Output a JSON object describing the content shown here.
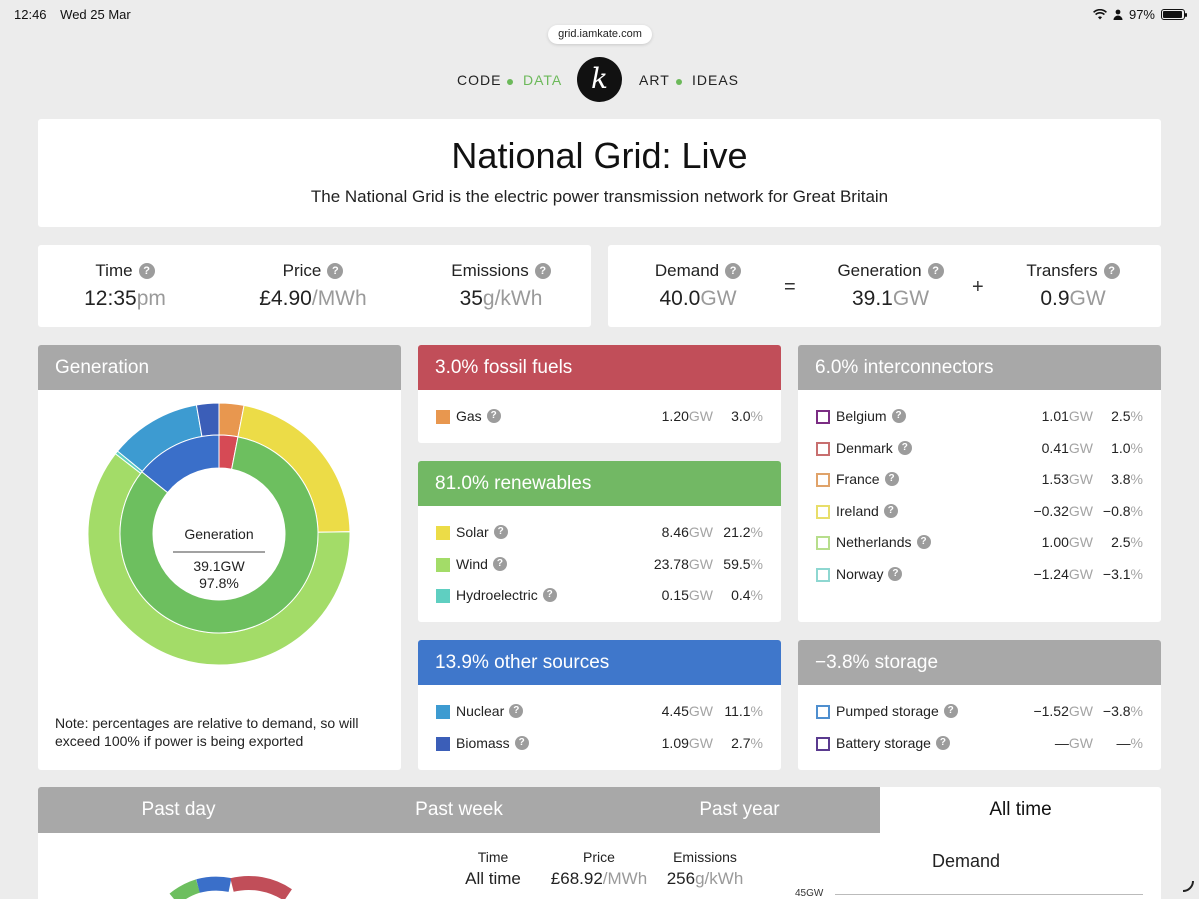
{
  "status": {
    "time": "12:46",
    "date": "Wed 25 Mar",
    "battery": "97%"
  },
  "browser": {
    "url": "grid.iamkate.com"
  },
  "nav": {
    "code": "CODE",
    "data": "DATA",
    "logo": "k",
    "art": "ART",
    "ideas": "IDEAS"
  },
  "hero": {
    "title": "National Grid: Live",
    "subtitle": "The National Grid is the electric power transmission network for Great Britain"
  },
  "stats": {
    "time": {
      "label": "Time",
      "value": "12:35",
      "unit": "pm"
    },
    "price": {
      "label": "Price",
      "value": "£4.90",
      "unit": "/MWh"
    },
    "emissions": {
      "label": "Emissions",
      "value": "35",
      "unit": "g/kWh"
    },
    "demand": {
      "label": "Demand",
      "value": "40.0",
      "unit": "GW"
    },
    "generation": {
      "label": "Generation",
      "value": "39.1",
      "unit": "GW"
    },
    "transfers": {
      "label": "Transfers",
      "value": "0.9",
      "unit": "GW"
    },
    "eq": "=",
    "plus": "+"
  },
  "generation_panel": {
    "title": "Generation",
    "center_label": "Generation",
    "center_gw": "39.1GW",
    "center_pct": "97.8%",
    "note": "Note: percentages are relative to demand, so will exceed 100% if power is being exported",
    "outer_segments": [
      {
        "name": "Gas",
        "pct": 3.0,
        "color": "#e8974f"
      },
      {
        "name": "Solar",
        "pct": 21.2,
        "color": "#ecdc47"
      },
      {
        "name": "Wind",
        "pct": 59.5,
        "color": "#a3dc68"
      },
      {
        "name": "Hydroelectric",
        "pct": 0.4,
        "color": "#5fcfc1"
      },
      {
        "name": "Nuclear",
        "pct": 11.1,
        "color": "#3d9bd1"
      },
      {
        "name": "Biomass",
        "pct": 2.7,
        "color": "#3b5eb8"
      }
    ],
    "inner_segments": [
      {
        "name": "fossil fuels",
        "pct": 3.0,
        "color": "#d64a55"
      },
      {
        "name": "renewables",
        "pct": 81.0,
        "color": "#6dbf5f"
      },
      {
        "name": "other sources",
        "pct": 13.9,
        "color": "#3a6fc9"
      }
    ]
  },
  "fossil": {
    "title": "3.0% fossil fuels",
    "rows": [
      {
        "name": "Gas",
        "gw": "1.20",
        "pct": "3.0",
        "color": "#e8974f"
      }
    ]
  },
  "renewables": {
    "title": "81.0% renewables",
    "rows": [
      {
        "name": "Solar",
        "gw": "8.46",
        "pct": "21.2",
        "color": "#ecdc47"
      },
      {
        "name": "Wind",
        "gw": "23.78",
        "pct": "59.5",
        "color": "#a3dc68"
      },
      {
        "name": "Hydroelectric",
        "gw": "0.15",
        "pct": "0.4",
        "color": "#5fcfc1"
      }
    ]
  },
  "other": {
    "title": "13.9% other sources",
    "rows": [
      {
        "name": "Nuclear",
        "gw": "4.45",
        "pct": "11.1",
        "color": "#3d9bd1"
      },
      {
        "name": "Biomass",
        "gw": "1.09",
        "pct": "2.7",
        "color": "#3b5eb8"
      }
    ]
  },
  "interconnectors": {
    "title": "6.0% interconnectors",
    "rows": [
      {
        "name": "Belgium",
        "gw": "1.01",
        "pct": "2.5",
        "color": "#7b2d83"
      },
      {
        "name": "Denmark",
        "gw": "0.41",
        "pct": "1.0",
        "color": "#c86f6f"
      },
      {
        "name": "France",
        "gw": "1.53",
        "pct": "3.8",
        "color": "#e0a36a"
      },
      {
        "name": "Ireland",
        "gw": "−0.32",
        "pct": "−0.8",
        "color": "#e8de6a"
      },
      {
        "name": "Netherlands",
        "gw": "1.00",
        "pct": "2.5",
        "color": "#b7de8c"
      },
      {
        "name": "Norway",
        "gw": "−1.24",
        "pct": "−3.1",
        "color": "#8ed7d1"
      }
    ]
  },
  "storage": {
    "title": "−3.8% storage",
    "rows": [
      {
        "name": "Pumped storage",
        "gw": "−1.52",
        "pct": "−3.8",
        "color": "#4f8fcf"
      },
      {
        "name": "Battery storage",
        "gw": "—",
        "pct": "—",
        "color": "#5a3a8f"
      }
    ]
  },
  "units": {
    "gw": "GW",
    "pct": "%"
  },
  "tabs": [
    "Past day",
    "Past week",
    "Past year",
    "All time"
  ],
  "bottom": {
    "time": {
      "label": "Time",
      "value": "All time"
    },
    "price": {
      "label": "Price",
      "value": "£68.92",
      "unit": "/MWh"
    },
    "emissions": {
      "label": "Emissions",
      "value": "256",
      "unit": "g/kWh"
    },
    "chart_title": "Demand",
    "axis_label": "45GW"
  }
}
